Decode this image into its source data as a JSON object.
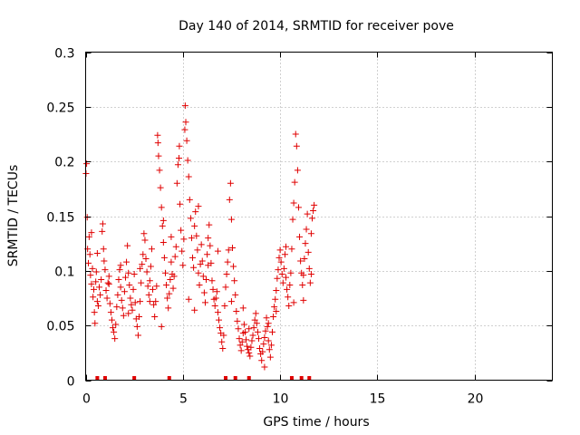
{
  "chart_data": {
    "type": "scatter",
    "title": "Day 140 of 2014, SRMTID for receiver pove",
    "xlabel": "GPS time / hours",
    "ylabel": "SRMTID / TECUs",
    "xlim": [
      0,
      24
    ],
    "ylim": [
      0,
      0.3
    ],
    "xticks": [
      0,
      5,
      10,
      15,
      20
    ],
    "xtick_labels": [
      "0",
      "5",
      "10",
      "15",
      "20"
    ],
    "yticks": [
      0,
      0.05,
      0.1,
      0.15,
      0.2,
      0.25,
      0.3
    ],
    "ytick_labels": [
      "0",
      "0.05",
      "0.1",
      "0.15",
      "0.2",
      "0.25",
      "0.3"
    ],
    "grid": true,
    "marker": "+",
    "color": "#e00000",
    "series": [
      {
        "name": "SRMTID",
        "points": [
          [
            0.02,
            0.189
          ],
          [
            0.05,
            0.198
          ],
          [
            0.08,
            0.149
          ],
          [
            0.1,
            0.12
          ],
          [
            0.14,
            0.107
          ],
          [
            0.18,
            0.131
          ],
          [
            0.22,
            0.115
          ],
          [
            0.25,
            0.096
          ],
          [
            0.3,
            0.088
          ],
          [
            0.35,
            0.102
          ],
          [
            0.38,
            0.076
          ],
          [
            0.42,
            0.083
          ],
          [
            0.45,
            0.062
          ],
          [
            0.48,
            0.052
          ],
          [
            0.52,
            0.09
          ],
          [
            0.55,
            0.099
          ],
          [
            0.6,
            0.072
          ],
          [
            0.65,
            0.068
          ],
          [
            0.7,
            0.085
          ],
          [
            0.75,
            0.078
          ],
          [
            0.8,
            0.092
          ],
          [
            0.85,
            0.136
          ],
          [
            0.88,
            0.143
          ],
          [
            0.92,
            0.12
          ],
          [
            0.95,
            0.109
          ],
          [
            1.0,
            0.101
          ],
          [
            1.05,
            0.082
          ],
          [
            1.1,
            0.075
          ],
          [
            1.15,
            0.089
          ],
          [
            1.2,
            0.095
          ],
          [
            1.25,
            0.07
          ],
          [
            1.3,
            0.062
          ],
          [
            1.35,
            0.055
          ],
          [
            1.4,
            0.048
          ],
          [
            1.45,
            0.044
          ],
          [
            1.5,
            0.038
          ],
          [
            1.55,
            0.051
          ],
          [
            1.6,
            0.067
          ],
          [
            1.65,
            0.078
          ],
          [
            1.7,
            0.092
          ],
          [
            1.75,
            0.101
          ],
          [
            1.8,
            0.085
          ],
          [
            1.85,
            0.073
          ],
          [
            1.9,
            0.066
          ],
          [
            1.95,
            0.059
          ],
          [
            2.0,
            0.081
          ],
          [
            2.05,
            0.094
          ],
          [
            2.1,
            0.108
          ],
          [
            2.15,
            0.123
          ],
          [
            2.2,
            0.098
          ],
          [
            2.25,
            0.087
          ],
          [
            2.3,
            0.075
          ],
          [
            2.35,
            0.069
          ],
          [
            2.4,
            0.064
          ],
          [
            2.45,
            0.083
          ],
          [
            2.5,
            0.097
          ],
          [
            2.55,
            0.071
          ],
          [
            2.6,
            0.056
          ],
          [
            2.65,
            0.049
          ],
          [
            2.7,
            0.041
          ],
          [
            2.75,
            0.058
          ],
          [
            2.8,
            0.072
          ],
          [
            2.85,
            0.089
          ],
          [
            2.9,
            0.106
          ],
          [
            2.95,
            0.115
          ],
          [
            3.0,
            0.134
          ],
          [
            3.05,
            0.128
          ],
          [
            3.1,
            0.111
          ],
          [
            3.15,
            0.099
          ],
          [
            3.2,
            0.086
          ],
          [
            3.25,
            0.078
          ],
          [
            3.3,
            0.091
          ],
          [
            3.35,
            0.104
          ],
          [
            3.4,
            0.12
          ],
          [
            3.45,
            0.083
          ],
          [
            3.5,
            0.069
          ],
          [
            3.55,
            0.058
          ],
          [
            3.6,
            0.072
          ],
          [
            3.65,
            0.086
          ],
          [
            3.7,
            0.224
          ],
          [
            3.72,
            0.217
          ],
          [
            3.75,
            0.205
          ],
          [
            3.8,
            0.192
          ],
          [
            3.85,
            0.176
          ],
          [
            3.9,
            0.158
          ],
          [
            3.95,
            0.141
          ],
          [
            4.0,
            0.126
          ],
          [
            4.05,
            0.112
          ],
          [
            4.1,
            0.098
          ],
          [
            4.15,
            0.087
          ],
          [
            4.2,
            0.075
          ],
          [
            4.25,
            0.066
          ],
          [
            4.3,
            0.079
          ],
          [
            4.35,
            0.092
          ],
          [
            4.4,
            0.108
          ],
          [
            4.45,
            0.097
          ],
          [
            4.5,
            0.084
          ],
          [
            4.55,
            0.095
          ],
          [
            4.6,
            0.113
          ],
          [
            4.65,
            0.122
          ],
          [
            4.7,
            0.18
          ],
          [
            4.75,
            0.197
          ],
          [
            4.8,
            0.203
          ],
          [
            4.82,
            0.214
          ],
          [
            4.85,
            0.161
          ],
          [
            4.9,
            0.137
          ],
          [
            4.95,
            0.118
          ],
          [
            5.0,
            0.105
          ],
          [
            5.05,
            0.129
          ],
          [
            5.1,
            0.229
          ],
          [
            5.12,
            0.251
          ],
          [
            5.15,
            0.236
          ],
          [
            5.2,
            0.219
          ],
          [
            5.25,
            0.201
          ],
          [
            5.3,
            0.186
          ],
          [
            5.35,
            0.165
          ],
          [
            5.4,
            0.148
          ],
          [
            5.45,
            0.13
          ],
          [
            5.5,
            0.112
          ],
          [
            5.55,
            0.103
          ],
          [
            5.6,
            0.141
          ],
          [
            5.65,
            0.154
          ],
          [
            5.7,
            0.132
          ],
          [
            5.75,
            0.119
          ],
          [
            5.8,
            0.098
          ],
          [
            5.85,
            0.087
          ],
          [
            5.9,
            0.106
          ],
          [
            5.95,
            0.124
          ],
          [
            6.0,
            0.109
          ],
          [
            6.05,
            0.095
          ],
          [
            6.1,
            0.08
          ],
          [
            6.15,
            0.071
          ],
          [
            6.2,
            0.092
          ],
          [
            6.25,
            0.115
          ],
          [
            6.3,
            0.13
          ],
          [
            6.35,
            0.142
          ],
          [
            6.4,
            0.123
          ],
          [
            6.45,
            0.107
          ],
          [
            6.5,
            0.091
          ],
          [
            6.55,
            0.083
          ],
          [
            6.6,
            0.074
          ],
          [
            6.65,
            0.068
          ],
          [
            6.7,
            0.075
          ],
          [
            6.75,
            0.081
          ],
          [
            6.8,
            0.062
          ],
          [
            6.85,
            0.055
          ],
          [
            6.9,
            0.048
          ],
          [
            6.95,
            0.043
          ],
          [
            7.0,
            0.035
          ],
          [
            7.05,
            0.029
          ],
          [
            7.1,
            0.041
          ],
          [
            7.15,
            0.068
          ],
          [
            7.2,
            0.085
          ],
          [
            7.25,
            0.097
          ],
          [
            7.3,
            0.108
          ],
          [
            7.35,
            0.119
          ],
          [
            7.4,
            0.165
          ],
          [
            7.45,
            0.18
          ],
          [
            7.5,
            0.147
          ],
          [
            7.55,
            0.121
          ],
          [
            7.6,
            0.104
          ],
          [
            7.65,
            0.091
          ],
          [
            7.7,
            0.078
          ],
          [
            7.75,
            0.063
          ],
          [
            7.8,
            0.054
          ],
          [
            7.85,
            0.047
          ],
          [
            7.9,
            0.038
          ],
          [
            7.95,
            0.032
          ],
          [
            8.0,
            0.027
          ],
          [
            8.05,
            0.035
          ],
          [
            8.1,
            0.043
          ],
          [
            8.15,
            0.051
          ],
          [
            8.2,
            0.044
          ],
          [
            8.25,
            0.037
          ],
          [
            8.3,
            0.031
          ],
          [
            8.35,
            0.028
          ],
          [
            8.4,
            0.025
          ],
          [
            8.45,
            0.022
          ],
          [
            8.5,
            0.03
          ],
          [
            8.55,
            0.036
          ],
          [
            8.6,
            0.041
          ],
          [
            8.65,
            0.048
          ],
          [
            8.7,
            0.055
          ],
          [
            8.75,
            0.061
          ],
          [
            8.8,
            0.052
          ],
          [
            8.85,
            0.044
          ],
          [
            8.9,
            0.038
          ],
          [
            8.95,
            0.029
          ],
          [
            9.0,
            0.024
          ],
          [
            9.05,
            0.018
          ],
          [
            9.1,
            0.026
          ],
          [
            9.15,
            0.033
          ],
          [
            9.2,
            0.039
          ],
          [
            9.25,
            0.045
          ],
          [
            9.3,
            0.057
          ],
          [
            9.35,
            0.049
          ],
          [
            9.4,
            0.036
          ],
          [
            9.45,
            0.028
          ],
          [
            9.5,
            0.021
          ],
          [
            9.55,
            0.032
          ],
          [
            9.6,
            0.044
          ],
          [
            9.65,
            0.058
          ],
          [
            9.7,
            0.067
          ],
          [
            9.75,
            0.074
          ],
          [
            9.8,
            0.082
          ],
          [
            9.85,
            0.093
          ],
          [
            9.9,
            0.101
          ],
          [
            9.95,
            0.112
          ],
          [
            10.0,
            0.119
          ],
          [
            10.05,
            0.108
          ],
          [
            10.1,
            0.097
          ],
          [
            10.15,
            0.089
          ],
          [
            10.2,
            0.102
          ],
          [
            10.25,
            0.115
          ],
          [
            10.3,
            0.094
          ],
          [
            10.35,
            0.083
          ],
          [
            10.4,
            0.076
          ],
          [
            10.45,
            0.068
          ],
          [
            10.5,
            0.087
          ],
          [
            10.55,
            0.098
          ],
          [
            10.6,
            0.12
          ],
          [
            10.65,
            0.147
          ],
          [
            10.7,
            0.162
          ],
          [
            10.75,
            0.181
          ],
          [
            10.8,
            0.225
          ],
          [
            10.85,
            0.214
          ],
          [
            10.9,
            0.192
          ],
          [
            10.95,
            0.158
          ],
          [
            11.0,
            0.131
          ],
          [
            11.05,
            0.109
          ],
          [
            11.1,
            0.098
          ],
          [
            11.15,
            0.087
          ],
          [
            11.2,
            0.096
          ],
          [
            11.25,
            0.111
          ],
          [
            11.3,
            0.125
          ],
          [
            11.35,
            0.138
          ],
          [
            11.4,
            0.152
          ],
          [
            11.45,
            0.117
          ],
          [
            11.5,
            0.102
          ],
          [
            11.55,
            0.089
          ],
          [
            11.6,
            0.134
          ],
          [
            11.65,
            0.148
          ],
          [
            11.7,
            0.155
          ],
          [
            11.75,
            0.16
          ],
          [
            0.6,
            0.116
          ],
          [
            1.2,
            0.088
          ],
          [
            2.8,
            0.102
          ],
          [
            3.3,
            0.072
          ],
          [
            4.0,
            0.146
          ],
          [
            4.4,
            0.131
          ],
          [
            5.3,
            0.074
          ],
          [
            5.8,
            0.159
          ],
          [
            6.3,
            0.105
          ],
          [
            7.5,
            0.072
          ],
          [
            8.4,
            0.047
          ],
          [
            9.2,
            0.012
          ],
          [
            9.8,
            0.063
          ],
          [
            10.3,
            0.122
          ],
          [
            11.2,
            0.073
          ],
          [
            0.3,
            0.135
          ],
          [
            1.8,
            0.105
          ],
          [
            2.2,
            0.061
          ],
          [
            3.9,
            0.049
          ],
          [
            5.6,
            0.064
          ],
          [
            6.8,
            0.118
          ],
          [
            8.1,
            0.066
          ],
          [
            9.4,
            0.052
          ],
          [
            10.7,
            0.071
          ],
          [
            11.6,
            0.097
          ]
        ]
      }
    ],
    "rug_marks_x": [
      0.6,
      1.0,
      2.5,
      4.3,
      7.2,
      7.7,
      8.4,
      10.6,
      11.1,
      11.5
    ]
  }
}
